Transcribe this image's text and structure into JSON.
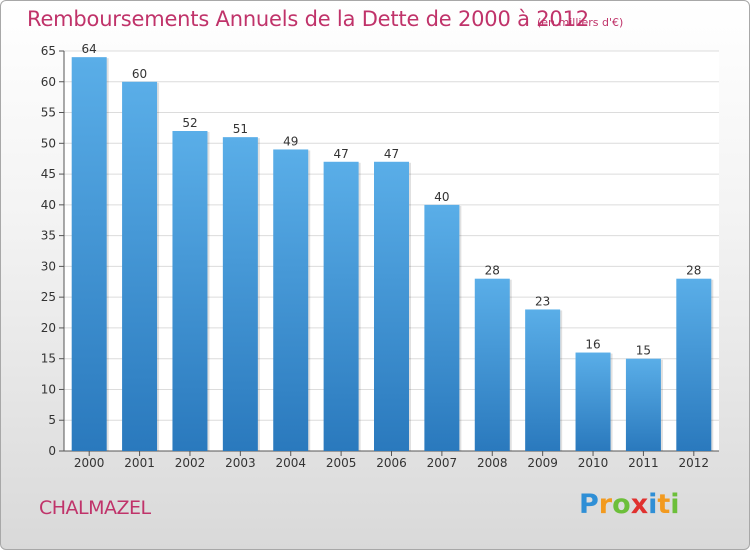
{
  "chart_data": {
    "type": "bar",
    "title": "Remboursements Annuels de la Dette de 2000 à 2012",
    "subtitle": "(en milliers d'€)",
    "categories": [
      "2000",
      "2001",
      "2002",
      "2003",
      "2004",
      "2005",
      "2006",
      "2007",
      "2008",
      "2009",
      "2010",
      "2011",
      "2012"
    ],
    "values": [
      64,
      60,
      52,
      51,
      49,
      47,
      47,
      40,
      28,
      23,
      16,
      15,
      28
    ],
    "ylim": [
      0,
      65
    ],
    "yticks": [
      0,
      5,
      10,
      15,
      20,
      25,
      30,
      35,
      40,
      45,
      50,
      55,
      60,
      65
    ],
    "grid": true,
    "colors": {
      "bar_top": "#5aaee8",
      "bar_bottom": "#2a79bd",
      "grid": "#dcdcdc"
    }
  },
  "place_name": "CHALMAZEL",
  "logo": {
    "letters": [
      "P",
      "r",
      "o",
      "x",
      "i",
      "t",
      "i"
    ],
    "colors": [
      "#2f8fd6",
      "#f29a1f",
      "#6cbf3a",
      "#e0312f",
      "#2f8fd6",
      "#f29a1f",
      "#6cbf3a"
    ]
  }
}
